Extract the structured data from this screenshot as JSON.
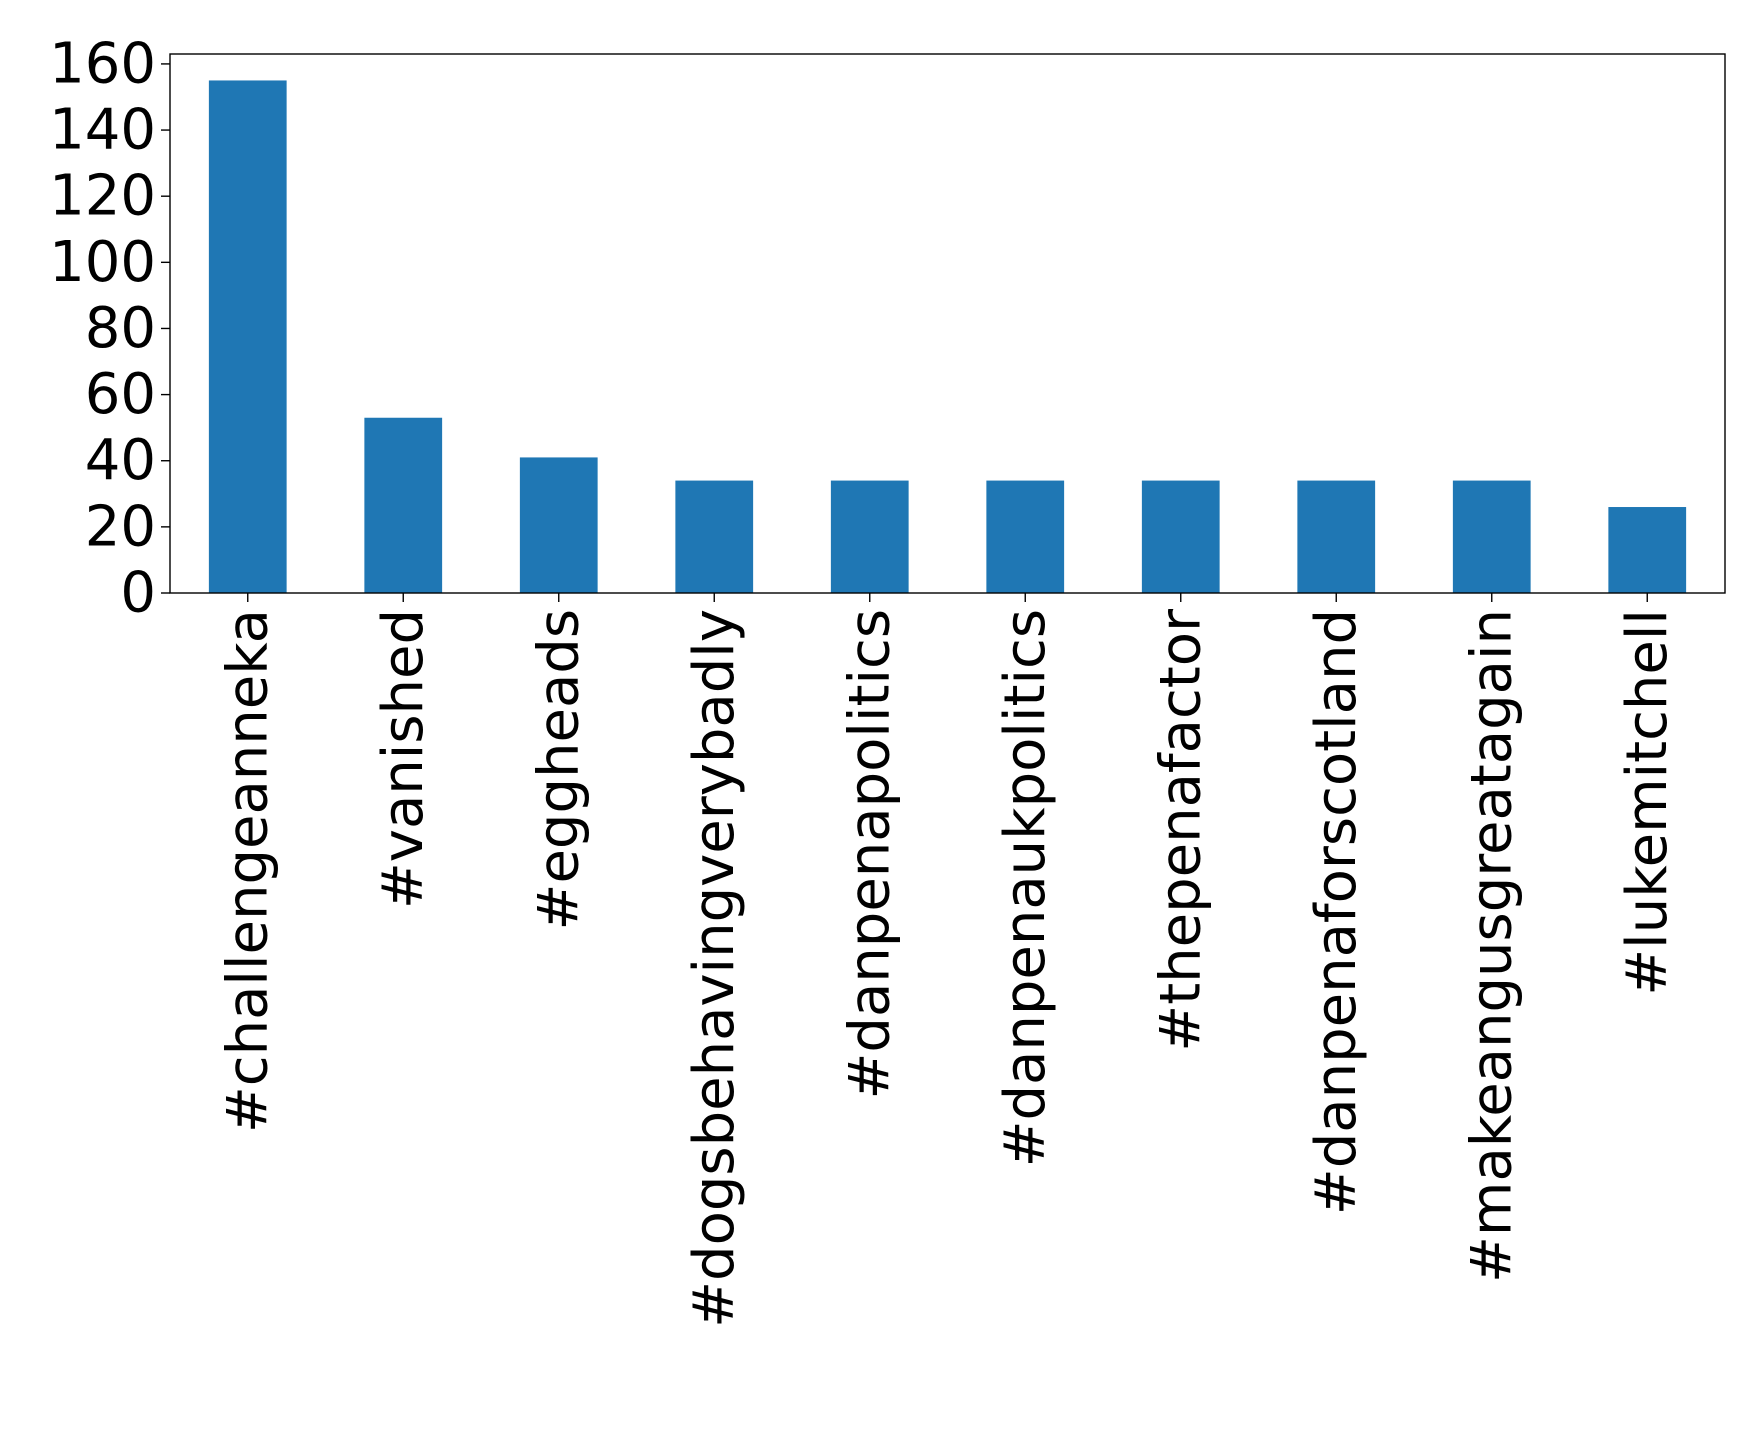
{
  "chart_data": {
    "type": "bar",
    "title": "",
    "xlabel": "",
    "ylabel": "",
    "categories": [
      "#challengeanneka",
      "#vanished",
      "#eggheads",
      "#dogsbehavingverybadly",
      "#danpenapolitics",
      "#danpenaukpolitics",
      "#thepenafactor",
      "#danpenaforscotland",
      "#makeangusgreatagain",
      "#lukemitchell"
    ],
    "values": [
      155,
      53,
      41,
      34,
      34,
      34,
      34,
      34,
      34,
      26
    ],
    "ylim": [
      0,
      163
    ],
    "yticks": [
      0,
      20,
      40,
      60,
      80,
      100,
      120,
      140,
      160
    ],
    "ytick_labels": [
      "0",
      "20",
      "40",
      "60",
      "80",
      "100",
      "120",
      "140",
      "160"
    ],
    "grid": false,
    "legend": "none",
    "bar_color": "#1f77b4"
  }
}
